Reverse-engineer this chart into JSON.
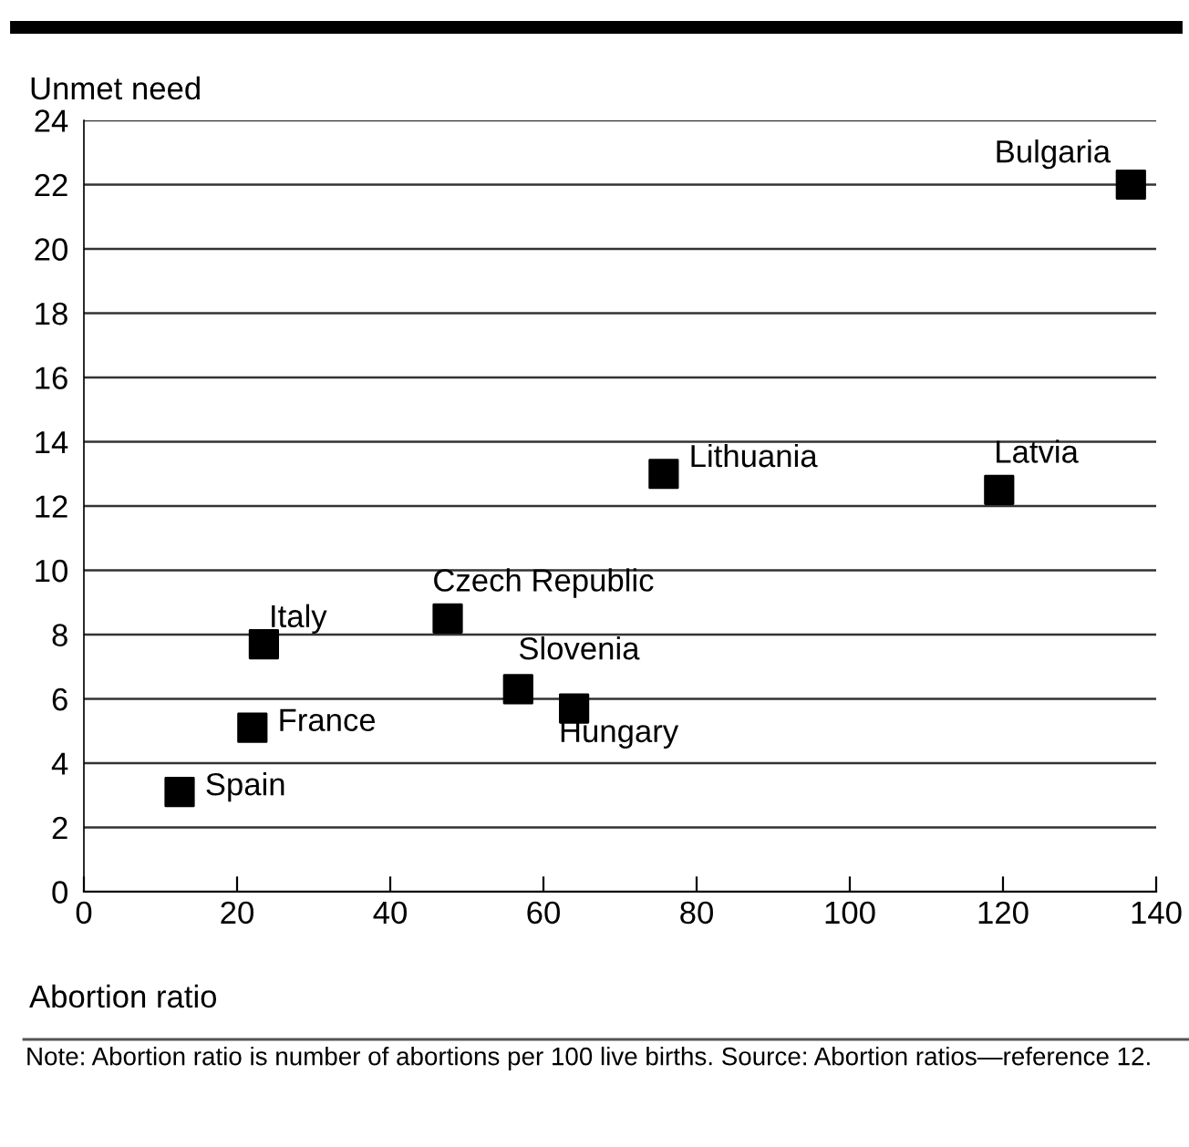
{
  "chart_data": {
    "type": "scatter",
    "ylabel": "Unmet need",
    "xlabel": "Abortion ratio",
    "x": [
      12.5,
      22,
      23.5,
      47.5,
      56.7,
      64,
      75.7,
      119.5,
      136.7
    ],
    "series": [
      {
        "color": "#000000",
        "values": [
          3.1,
          5.1,
          7.7,
          8.5,
          6.3,
          5.7,
          13,
          12.5,
          22
        ]
      }
    ],
    "marker": "square",
    "xlim": [
      0,
      140
    ],
    "xticks": [
      0,
      20,
      40,
      60,
      80,
      100,
      120,
      140
    ],
    "ylim": [
      0,
      24
    ],
    "yticks": [
      0,
      2,
      4,
      6,
      8,
      10,
      12,
      14,
      16,
      18,
      20,
      22,
      24
    ],
    "grid": "y",
    "legend": false,
    "annotations": [
      {
        "text": "Spain",
        "x": 12.5,
        "y": 3.1
      },
      {
        "text": "France",
        "x": 22,
        "y": 5.1
      },
      {
        "text": "Italy",
        "x": 23.5,
        "y": 7.7
      },
      {
        "text": "Czech Republic",
        "x": 47.5,
        "y": 8.5
      },
      {
        "text": "Slovenia",
        "x": 56.7,
        "y": 6.3
      },
      {
        "text": "Hungary",
        "x": 64,
        "y": 5.7
      },
      {
        "text": "Lithuania",
        "x": 75.7,
        "y": 13
      },
      {
        "text": "Latvia",
        "x": 119.5,
        "y": 12.5
      },
      {
        "text": "Bulgaria",
        "x": 136.7,
        "y": 22
      },
      "Note: Abortion ratio is number of abortions per 100 live births. Source: Abortion ratios—reference 12."
    ]
  }
}
